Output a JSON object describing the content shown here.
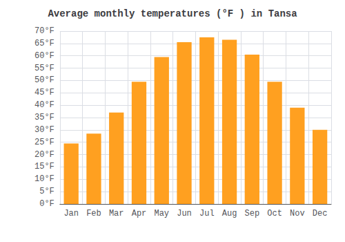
{
  "chart_data": {
    "type": "bar",
    "title": "Average monthly temperatures (°F ) in Tansa",
    "categories": [
      "Jan",
      "Feb",
      "Mar",
      "Apr",
      "May",
      "Jun",
      "Jul",
      "Aug",
      "Sep",
      "Oct",
      "Nov",
      "Dec"
    ],
    "values": [
      24.5,
      28.5,
      37,
      49.5,
      59.5,
      65.5,
      67.5,
      66.5,
      60.5,
      49.5,
      39,
      30
    ],
    "color": "#FFA020",
    "ylim": [
      0,
      70
    ],
    "yticks": [
      {
        "value": 0,
        "label": "0°F"
      },
      {
        "value": 5,
        "label": "5°F"
      },
      {
        "value": 10,
        "label": "10°F"
      },
      {
        "value": 15,
        "label": "15°F"
      },
      {
        "value": 20,
        "label": "20°F"
      },
      {
        "value": 25,
        "label": "25°F"
      },
      {
        "value": 30,
        "label": "30°F"
      },
      {
        "value": 35,
        "label": "35°F"
      },
      {
        "value": 40,
        "label": "40°F"
      },
      {
        "value": 45,
        "label": "45°F"
      },
      {
        "value": 50,
        "label": "50°F"
      },
      {
        "value": 55,
        "label": "55°F"
      },
      {
        "value": 60,
        "label": "60°F"
      },
      {
        "value": 65,
        "label": "65°F"
      },
      {
        "value": 70,
        "label": "70°F"
      }
    ],
    "grid": true
  }
}
